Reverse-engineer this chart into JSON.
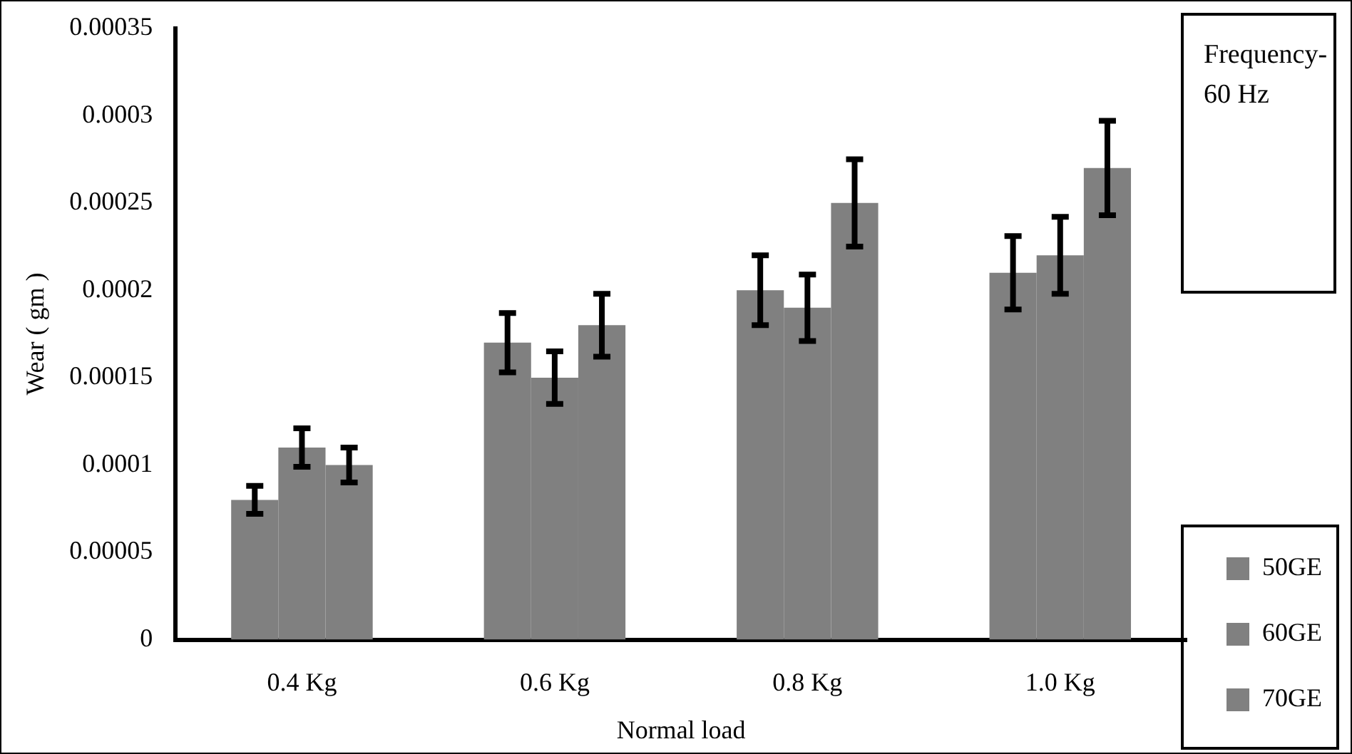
{
  "chart_data": {
    "type": "bar",
    "xlabel": "Normal load",
    "ylabel": "Wear ( gm )",
    "categories": [
      "0.4 Kg",
      "0.6 Kg",
      "0.8 Kg",
      "1.0 Kg"
    ],
    "series": [
      {
        "name": "50GE",
        "color": "#808080",
        "values": [
          8e-05,
          0.00017,
          0.0002,
          0.00021
        ],
        "errors": [
          8e-06,
          1.7e-05,
          2e-05,
          2.1e-05
        ]
      },
      {
        "name": "60GE",
        "color": "#808080",
        "values": [
          0.00011,
          0.00015,
          0.00019,
          0.00022
        ],
        "errors": [
          1.1e-05,
          1.5e-05,
          1.9e-05,
          2.2e-05
        ]
      },
      {
        "name": "70GE",
        "color": "#808080",
        "values": [
          0.0001,
          0.00018,
          0.00025,
          0.00027
        ],
        "errors": [
          1e-05,
          1.8e-05,
          2.5e-05,
          2.7e-05
        ]
      }
    ],
    "ylim": [
      0,
      0.00035
    ],
    "yticks": [
      0,
      {
        "value": 5e-05,
        "label": "0.00005"
      },
      0.0001,
      0.00015,
      0.0002,
      0.00025,
      0.0003,
      0.00035
    ],
    "grid": false,
    "legend": "right",
    "annotations": [
      "Frequency-60 Hz"
    ]
  }
}
